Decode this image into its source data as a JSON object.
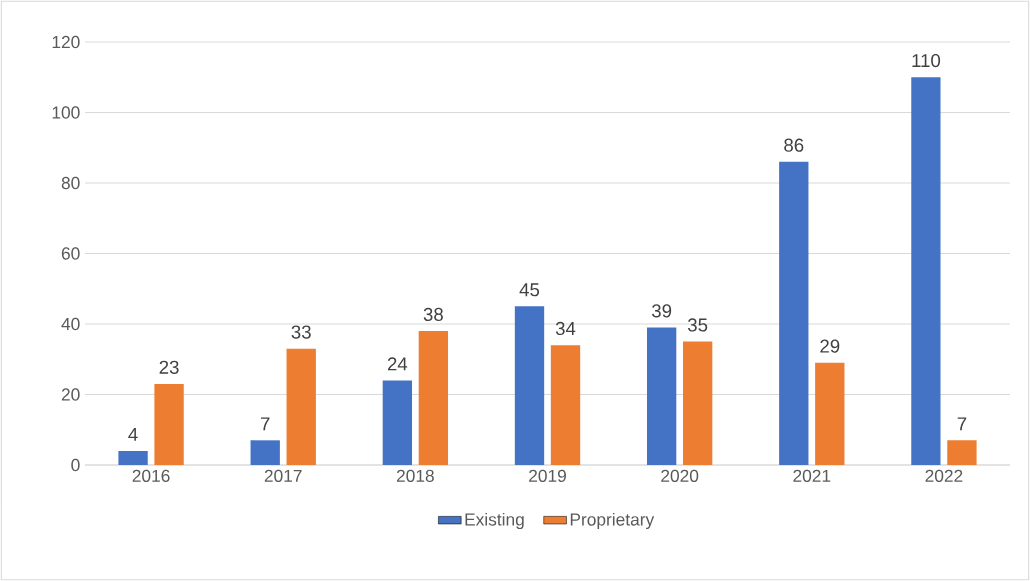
{
  "chart_data": {
    "type": "bar",
    "categories": [
      "2016",
      "2017",
      "2018",
      "2019",
      "2020",
      "2021",
      "2022"
    ],
    "series": [
      {
        "name": "Existing",
        "color": "#4472c4",
        "values": [
          4,
          7,
          24,
          45,
          39,
          86,
          110
        ]
      },
      {
        "name": "Proprietary",
        "color": "#ed7d31",
        "values": [
          23,
          33,
          38,
          34,
          35,
          29,
          7
        ]
      }
    ],
    "ylim": [
      0,
      120
    ],
    "yticks": [
      0,
      20,
      40,
      60,
      80,
      100,
      120
    ],
    "grid": "y",
    "legend": "bottom",
    "data_labels": true
  }
}
